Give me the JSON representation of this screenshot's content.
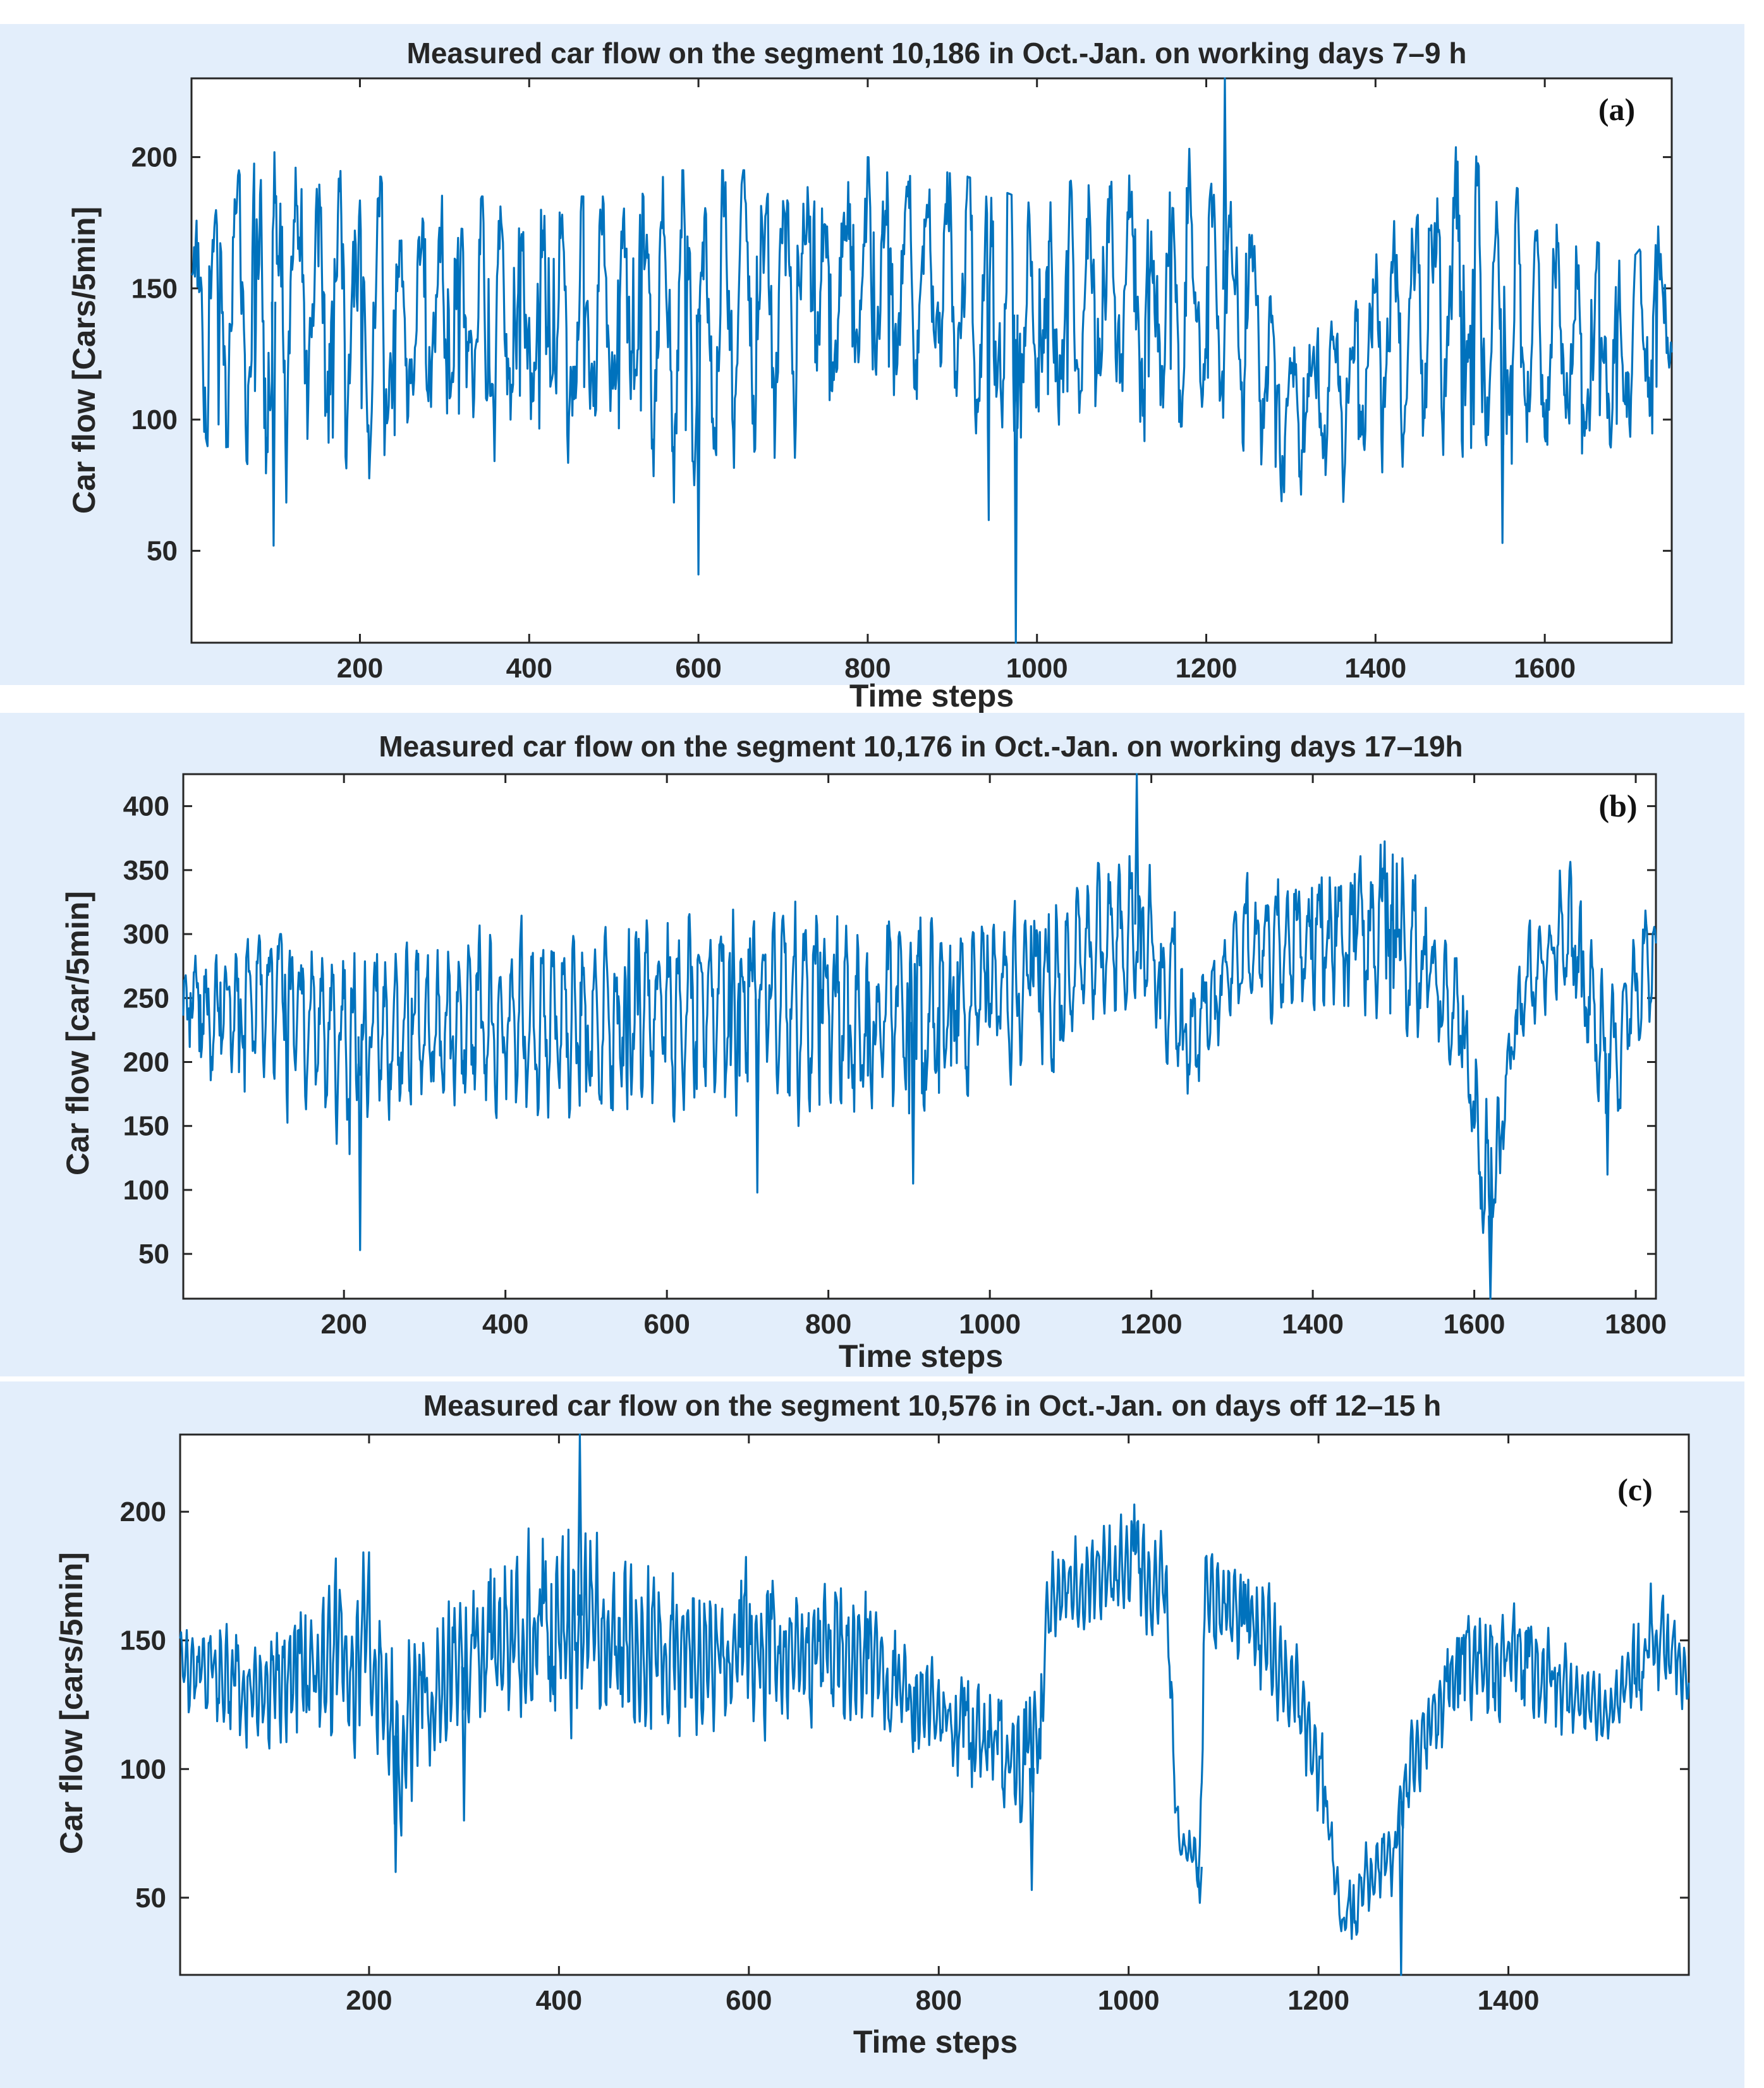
{
  "figure": {
    "background_color": "#e3eefb",
    "line_color": "#0072bd"
  },
  "chart_data": [
    {
      "id": "a",
      "type": "line",
      "title": "Measured car flow on the segment 10,186 in Oct.-Jan. on working days 7–9 h",
      "panel_label": "(a)",
      "xlabel": "Time steps",
      "ylabel": "Car flow [Cars/5min]",
      "xlim": [
        1,
        1750
      ],
      "ylim": [
        15,
        230
      ],
      "xticks": [
        200,
        400,
        600,
        800,
        1000,
        1200,
        1400,
        1600
      ],
      "yticks": [
        50,
        100,
        150,
        200
      ],
      "series": [
        {
          "name": "Measured car flow",
          "period": 24,
          "anchors": [
            [
              1,
              75,
              185,
              140
            ],
            [
              100,
              55,
              215,
              145
            ],
            [
              200,
              60,
              195,
              140
            ],
            [
              300,
              65,
              185,
              138
            ],
            [
              400,
              70,
              185,
              138
            ],
            [
              500,
              65,
              185,
              140
            ],
            [
              560,
              50,
              195,
              140
            ],
            [
              600,
              45,
              195,
              140
            ],
            [
              700,
              70,
              195,
              145
            ],
            [
              800,
              85,
              200,
              155
            ],
            [
              900,
              80,
              195,
              150
            ],
            [
              975,
              15,
              185,
              140
            ],
            [
              1000,
              75,
              195,
              140
            ],
            [
              1100,
              80,
              190,
              145
            ],
            [
              1220,
              85,
              230,
              150
            ],
            [
              1260,
              70,
              175,
              140
            ],
            [
              1280,
              60,
              140,
              105
            ],
            [
              1350,
              60,
              140,
              110
            ],
            [
              1400,
              65,
              180,
              130
            ],
            [
              1500,
              60,
              205,
              145
            ],
            [
              1600,
              60,
              180,
              130
            ],
            [
              1700,
              65,
              160,
              130
            ],
            [
              1750,
              90,
              180,
              155
            ]
          ],
          "spikes": [
            [
              975,
              15
            ],
            [
              1222,
              230
            ],
            [
              600,
              41
            ],
            [
              98,
              52
            ],
            [
              1550,
              53
            ]
          ]
        }
      ]
    },
    {
      "id": "b",
      "type": "line",
      "title": "Measured car flow on the segment 10,176 in Oct.-Jan. on working days 17–19h",
      "panel_label": "(b)",
      "xlabel": "Time steps",
      "ylabel": "Car flow [car/5min]",
      "xlim": [
        1,
        1825
      ],
      "ylim": [
        15,
        425
      ],
      "xticks": [
        200,
        400,
        600,
        800,
        1000,
        1200,
        1400,
        1600,
        1800
      ],
      "yticks": [
        50,
        100,
        150,
        200,
        250,
        300,
        350,
        400
      ],
      "series": [
        {
          "name": "Measured car flow",
          "period": 13,
          "anchors": [
            [
              1,
              130,
              280,
              235
            ],
            [
              100,
              150,
              300,
              245
            ],
            [
              200,
              100,
              300,
              220
            ],
            [
              300,
              140,
              300,
              220
            ],
            [
              400,
              140,
              320,
              230
            ],
            [
              500,
              140,
              320,
              230
            ],
            [
              600,
              150,
              340,
              240
            ],
            [
              700,
              150,
              350,
              250
            ],
            [
              800,
              150,
              360,
              245
            ],
            [
              900,
              110,
              330,
              230
            ],
            [
              1000,
              170,
              330,
              255
            ],
            [
              1100,
              190,
              350,
              270
            ],
            [
              1180,
              250,
              420,
              310
            ],
            [
              1250,
              160,
              300,
              220
            ],
            [
              1300,
              230,
              350,
              280
            ],
            [
              1400,
              230,
              370,
              290
            ],
            [
              1500,
              200,
              400,
              300
            ],
            [
              1580,
              180,
              300,
              240
            ],
            [
              1620,
              15,
              180,
              80
            ],
            [
              1650,
              200,
              290,
              245
            ],
            [
              1720,
              250,
              390,
              310
            ],
            [
              1760,
              120,
              280,
              200
            ],
            [
              1825,
              240,
              350,
              290
            ]
          ],
          "spikes": [
            [
              220,
              53
            ],
            [
              1182,
              425
            ],
            [
              1620,
              15
            ],
            [
              905,
              105
            ],
            [
              712,
              98
            ],
            [
              1765,
              112
            ]
          ]
        }
      ]
    },
    {
      "id": "c",
      "type": "line",
      "title": "Measured car flow on the segment 10,576 in Oct.-Jan. on days off 12–15 h",
      "panel_label": "(c)",
      "xlabel": "Time steps",
      "ylabel": "Car flow [cars/5min]",
      "xlim": [
        1,
        1590
      ],
      "ylim": [
        20,
        230
      ],
      "xticks": [
        200,
        400,
        600,
        800,
        1000,
        1200,
        1400
      ],
      "yticks": [
        50,
        100,
        150,
        200
      ],
      "series": [
        {
          "name": "Measured car flow",
          "period": 6,
          "anchors": [
            [
              1,
              115,
              175,
              140
            ],
            [
              100,
              100,
              170,
              130
            ],
            [
              200,
              100,
              210,
              150
            ],
            [
              220,
              60,
              170,
              110
            ],
            [
              300,
              110,
              180,
              140
            ],
            [
              420,
              110,
              230,
              160
            ],
            [
              500,
              110,
              190,
              145
            ],
            [
              600,
              110,
              190,
              145
            ],
            [
              700,
              110,
              190,
              145
            ],
            [
              800,
              90,
              150,
              120
            ],
            [
              900,
              60,
              140,
              100
            ],
            [
              920,
              140,
              200,
              170
            ],
            [
              1000,
              150,
              215,
              180
            ],
            [
              1040,
              140,
              200,
              170
            ],
            [
              1050,
              60,
              90,
              75
            ],
            [
              1075,
              50,
              80,
              62
            ],
            [
              1080,
              140,
              200,
              165
            ],
            [
              1150,
              120,
              180,
              150
            ],
            [
              1200,
              70,
              130,
              100
            ],
            [
              1225,
              25,
              60,
              40
            ],
            [
              1280,
              50,
              100,
              70
            ],
            [
              1290,
              80,
              120,
              95
            ],
            [
              1350,
              110,
              170,
              140
            ],
            [
              1400,
              110,
              180,
              145
            ],
            [
              1500,
              100,
              140,
              120
            ],
            [
              1550,
              120,
              180,
              150
            ],
            [
              1590,
              120,
              160,
              135
            ]
          ],
          "spikes": [
            [
              422,
              230
            ],
            [
              228,
              60
            ],
            [
              1287,
              20
            ],
            [
              1075,
              48
            ],
            [
              300,
              80
            ],
            [
              898,
              53
            ]
          ]
        }
      ]
    }
  ]
}
